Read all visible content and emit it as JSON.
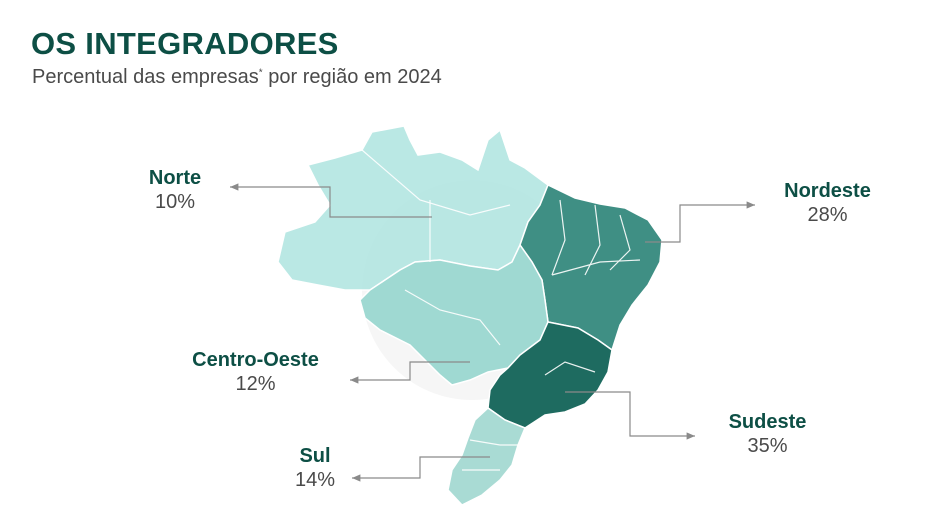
{
  "header": {
    "title": "OS INTEGRADORES",
    "subtitle": "Percentual das empresas",
    "subtitle_mark": "*",
    "subtitle_tail": " por região em 2024"
  },
  "regions": [
    {
      "key": "norte",
      "name": "Norte",
      "percent": "10%",
      "value": 10,
      "color": "#b3e6e2"
    },
    {
      "key": "nordeste",
      "name": "Nordeste",
      "percent": "28%",
      "value": 28,
      "color": "#3f8f84"
    },
    {
      "key": "centro_oeste",
      "name": "Centro-Oeste",
      "percent": "12%",
      "value": 12,
      "color": "#9fd9d2"
    },
    {
      "key": "sudeste",
      "name": "Sudeste",
      "percent": "35%",
      "value": 35,
      "color": "#1e6b60"
    },
    {
      "key": "sul",
      "name": "Sul",
      "percent": "14%",
      "value": 14,
      "color": "#a9dbd4"
    }
  ],
  "colors": {
    "title": "#0d4f45",
    "leader_line": "#8a8a8a",
    "watermark": "#e9e9e9"
  }
}
